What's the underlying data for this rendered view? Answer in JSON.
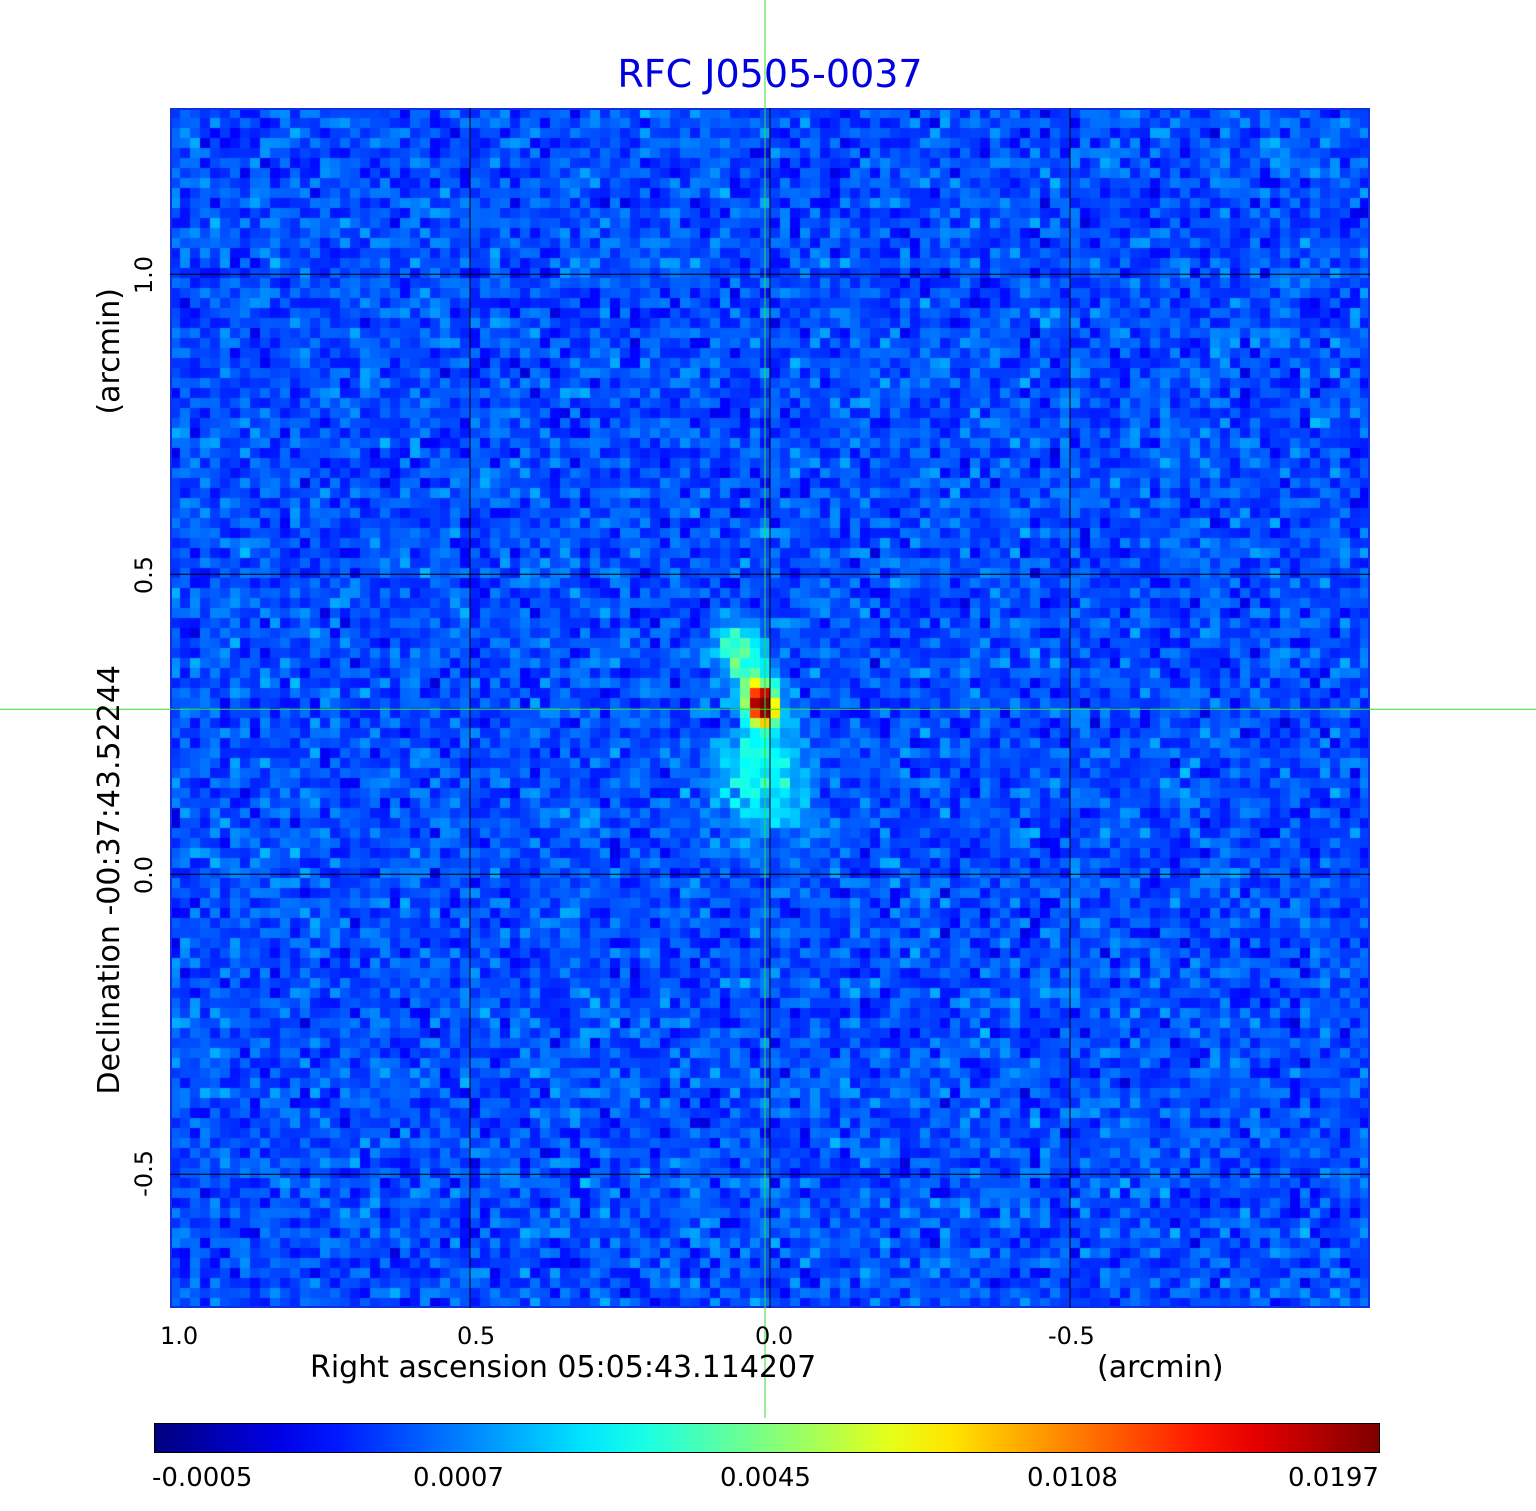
{
  "chart_data": {
    "type": "heatmap",
    "title": "RFC J0505-0037",
    "xlabel": "Right ascension  05:05:43.114207",
    "xunit": "(arcmin)",
    "ylabel": "Declination  -00:37:43.52244",
    "yunit": "(arcmin)",
    "xlim": [
      1.0,
      -1.0
    ],
    "ylim": [
      -0.723,
      1.277
    ],
    "xticks": [
      "1.0",
      "0.5",
      "0.0",
      "-0.5"
    ],
    "xtick_values": [
      1.0,
      0.5,
      0.0,
      -0.5
    ],
    "yticks": [
      "1.0",
      "0.5",
      "0.0",
      "-0.5"
    ],
    "ytick_values": [
      1.0,
      0.5,
      0.0,
      -0.5
    ],
    "grid": true,
    "crosshair": {
      "x": 0.005,
      "y": 0.275
    },
    "source_peak": {
      "x": 0.01,
      "y": 0.28,
      "value": 0.0197
    },
    "colormap": "jet",
    "colorbar": {
      "ticks": [
        "-0.0005",
        "0.0007",
        "0.0045",
        "0.0108",
        "0.0197"
      ],
      "values": [
        -0.0005,
        0.0007,
        0.0045,
        0.0108,
        0.0197
      ],
      "placement": "bottom"
    },
    "colors": {
      "title": "#0000e0",
      "crosshair": "#33dd33",
      "grid": "#000000",
      "frame": "#1030e0"
    }
  }
}
